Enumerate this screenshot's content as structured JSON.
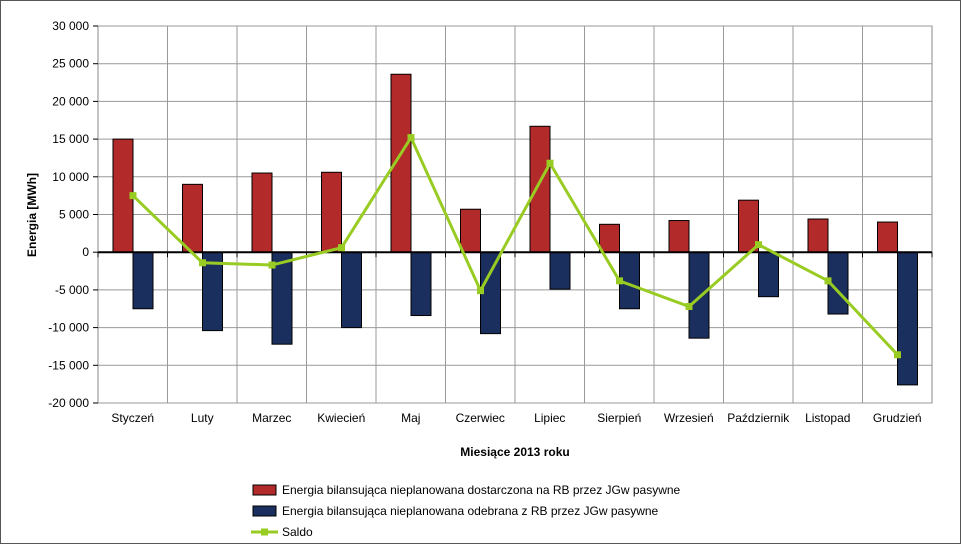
{
  "chart_data": {
    "type": "bar",
    "xlabel": "Miesiące 2013  roku",
    "ylabel": "Energia [MWh]",
    "ylim": [
      -20000,
      30000
    ],
    "yticks": [
      "30 000",
      "25 000",
      "20 000",
      "15 000",
      "10 000",
      "5 000",
      "0",
      "-5 000",
      "-10 000",
      "-15 000",
      "-20 000"
    ],
    "ytick_values": [
      30000,
      25000,
      20000,
      15000,
      10000,
      5000,
      0,
      -5000,
      -10000,
      -15000,
      -20000
    ],
    "grid": true,
    "legend_position": "bottom",
    "categories": [
      "Styczeń",
      "Luty",
      "Marzec",
      "Kwiecień",
      "Maj",
      "Czerwiec",
      "Lipiec",
      "Sierpień",
      "Wrzesień",
      "Październik",
      "Listopad",
      "Grudzień"
    ],
    "series": [
      {
        "name": "Energia bilansująca nieplanowana dostarczona na RB przez JGw pasywne",
        "type": "bar",
        "color": "#b22a2a",
        "values": [
          15000,
          9000,
          10500,
          10600,
          23600,
          5700,
          16700,
          3700,
          4200,
          6900,
          4400,
          4000
        ]
      },
      {
        "name": "Energia bilansująca nieplanowana odebrana z RB przez JGw pasywne",
        "type": "bar",
        "color": "#1a2f5e",
        "values": [
          -7500,
          -10400,
          -12200,
          -10000,
          -8400,
          -10800,
          -4900,
          -7500,
          -11400,
          -5900,
          -8200,
          -17600
        ]
      },
      {
        "name": "Saldo",
        "type": "line",
        "color": "#99cc22",
        "values": [
          7500,
          -1400,
          -1700,
          600,
          15200,
          -5100,
          11800,
          -3800,
          -7200,
          1000,
          -3800,
          -13600
        ]
      }
    ]
  }
}
